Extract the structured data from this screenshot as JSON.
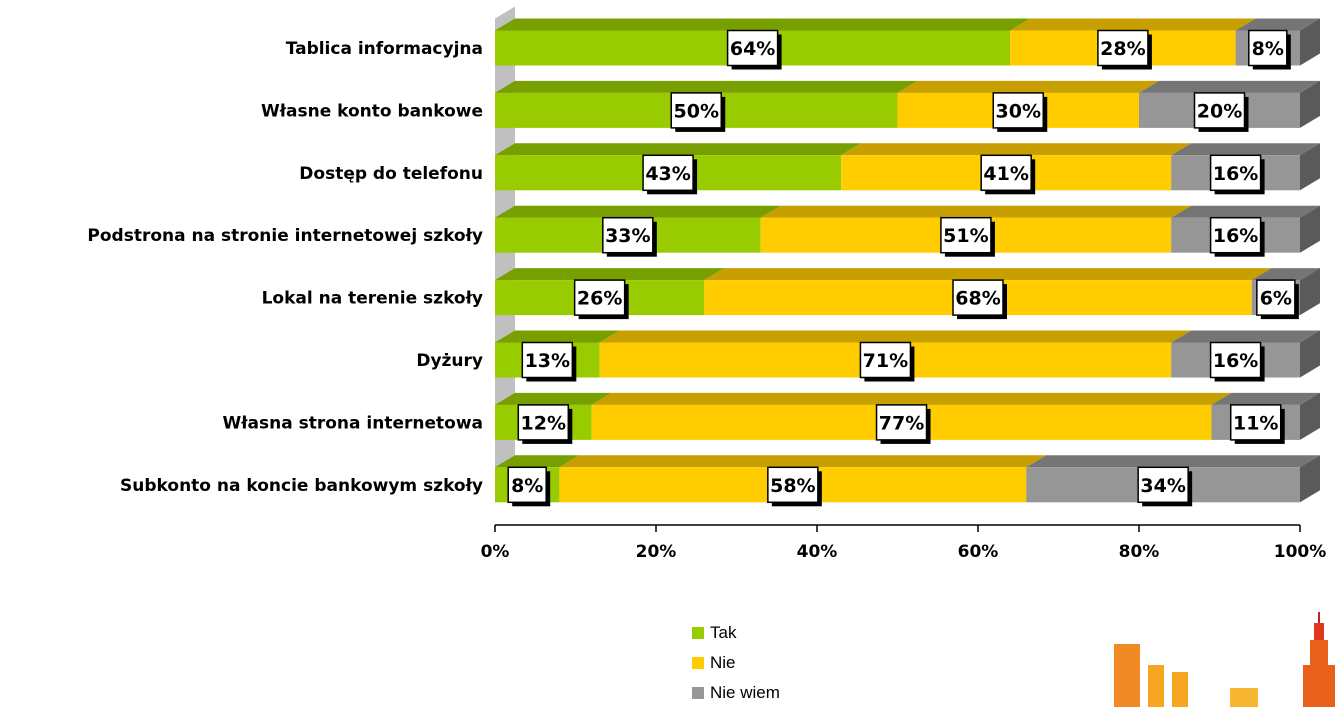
{
  "chart_data": {
    "type": "bar",
    "orientation": "horizontal",
    "stacked": "percent",
    "categories": [
      "Tablica informacyjna",
      "Własne konto bankowe",
      "Dostęp do telefonu",
      "Podstrona na stronie internetowej szkoły",
      "Lokal na terenie szkoły",
      "Dyżury",
      "Własna strona internetowa",
      "Subkonto na koncie bankowym szkoły"
    ],
    "series": [
      {
        "name": "Tak",
        "color": "#99cc00",
        "values": [
          64,
          50,
          43,
          33,
          26,
          13,
          12,
          8
        ]
      },
      {
        "name": "Nie",
        "color": "#ffcc00",
        "values": [
          28,
          30,
          41,
          51,
          68,
          71,
          77,
          58
        ]
      },
      {
        "name": "Nie wiem",
        "color": "#969696",
        "values": [
          8,
          20,
          16,
          16,
          6,
          16,
          11,
          34
        ]
      }
    ],
    "xlim": [
      0,
      100
    ],
    "x_ticks": [
      "0%",
      "20%",
      "40%",
      "60%",
      "80%",
      "100%"
    ],
    "value_suffix": "%",
    "legend_position": "bottom-center"
  }
}
